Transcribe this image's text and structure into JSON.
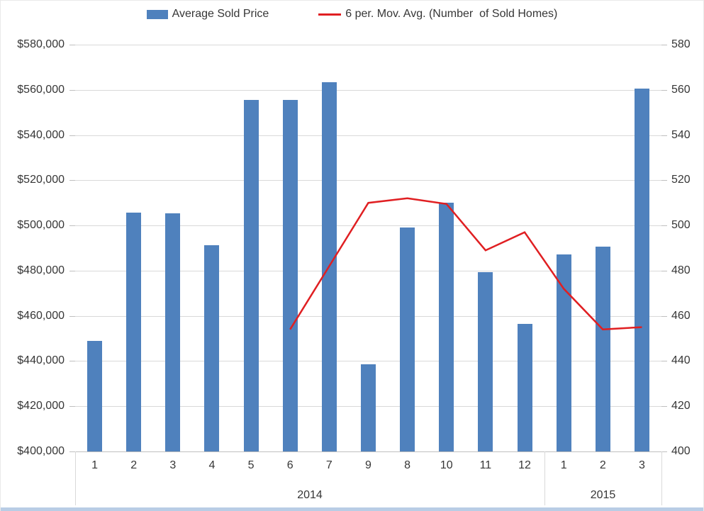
{
  "chart_data": {
    "type": "bar",
    "title": "",
    "categories": [
      "1",
      "2",
      "3",
      "4",
      "5",
      "6",
      "7",
      "9",
      "8",
      "10",
      "11",
      "12",
      "1",
      "2",
      "3"
    ],
    "category_groups": [
      {
        "label": "2014",
        "count": 12
      },
      {
        "label": "2015",
        "count": 3
      }
    ],
    "series": [
      {
        "name": "Average Sold Price",
        "type": "bar",
        "axis": "left",
        "color": "#4f81bd",
        "values": [
          449000,
          505700,
          505300,
          491300,
          555500,
          555500,
          563500,
          438500,
          499000,
          510000,
          479200,
          456600,
          487200,
          490500,
          560600
        ]
      },
      {
        "name": "6 per. Mov. Avg. (Number  of Sold Homes)",
        "type": "line",
        "axis": "right",
        "color": "#e01f22",
        "values": [
          null,
          null,
          null,
          null,
          null,
          454,
          482,
          510,
          512,
          509.5,
          489,
          497,
          472,
          454,
          455
        ]
      }
    ],
    "left_axis": {
      "min": 400000,
      "max": 580000,
      "step": 20000,
      "tick_labels": [
        "$580,000",
        "$560,000",
        "$540,000",
        "$520,000",
        "$500,000",
        "$480,000",
        "$460,000",
        "$440,000",
        "$420,000",
        "$400,000"
      ]
    },
    "right_axis": {
      "min": 400,
      "max": 580,
      "step": 20,
      "tick_labels": [
        "580",
        "560",
        "540",
        "520",
        "500",
        "480",
        "460",
        "440",
        "420",
        "400"
      ]
    },
    "grid": true,
    "legend_position": "top",
    "colors": {
      "bar": "#4f81bd",
      "line": "#e01f22",
      "gridline": "#d9d9d9",
      "axis_line": "#bfbfbf",
      "frame_bottom": "#b9cde5"
    }
  }
}
